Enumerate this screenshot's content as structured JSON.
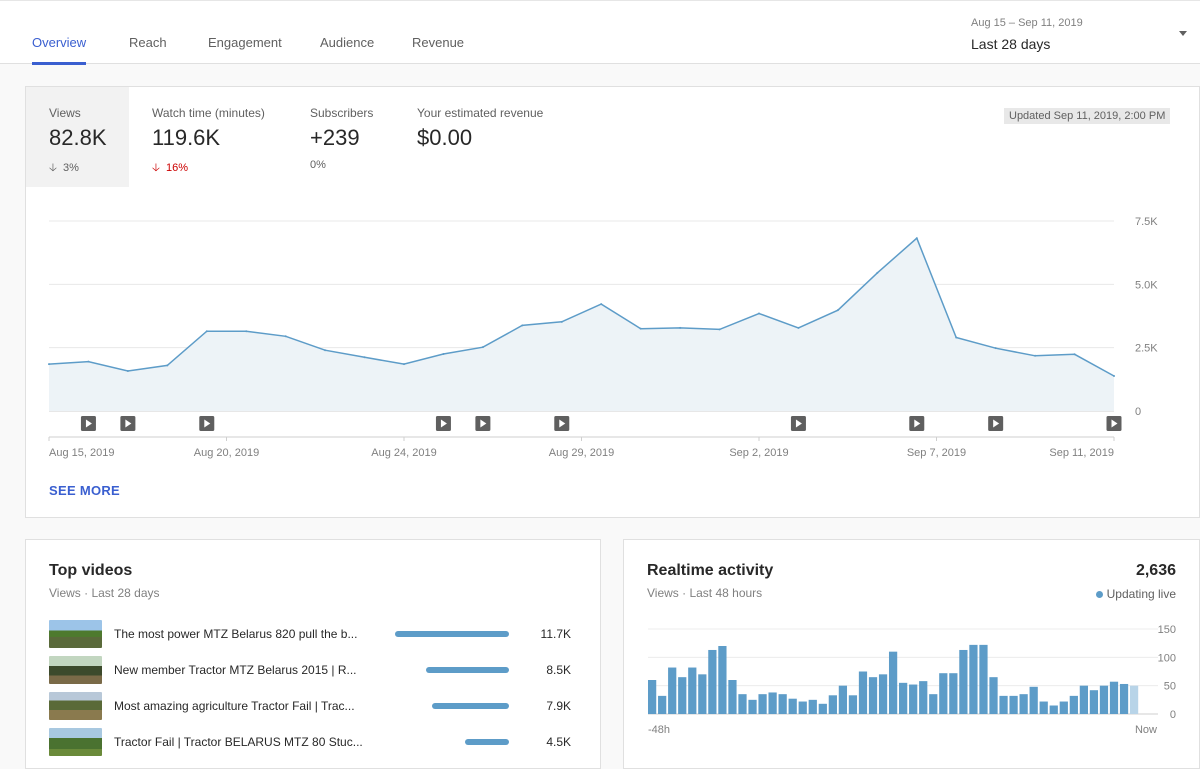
{
  "tabs": [
    {
      "label": "Overview",
      "active": true
    },
    {
      "label": "Reach"
    },
    {
      "label": "Engagement"
    },
    {
      "label": "Audience"
    },
    {
      "label": "Revenue"
    }
  ],
  "date_range": {
    "range": "Aug 15 – Sep 11, 2019",
    "label": "Last 28 days"
  },
  "metrics": [
    {
      "label": "Views",
      "value": "82.8K",
      "delta": "3%",
      "direction": "down"
    },
    {
      "label": "Watch time (minutes)",
      "value": "119.6K",
      "delta": "16%",
      "direction": "down"
    },
    {
      "label": "Subscribers",
      "value": "+239",
      "delta": "0%"
    },
    {
      "label": "Your estimated revenue",
      "value": "$0.00",
      "delta": ""
    }
  ],
  "updated": "Updated Sep 11, 2019, 2:00 PM",
  "see_more": "SEE MORE",
  "colors": {
    "accent": "#3a5fd0",
    "chart_line": "#5d9cc8",
    "chart_fill": "#edf3f7",
    "down": "#cc0000"
  },
  "chart_data": [
    {
      "type": "area",
      "series": [
        {
          "values": [
            1850,
            1950,
            1580,
            1800,
            3150,
            3150,
            2950,
            2400,
            2120,
            1850,
            2250,
            2520,
            3380,
            3520,
            4220,
            3250,
            3280,
            3220,
            3850,
            3280,
            3980,
            5450,
            6820,
            2900,
            2480,
            2180,
            2240,
            1380
          ]
        }
      ],
      "x_tick_labels": [
        "Aug 15, 2019",
        "Aug 20, 2019",
        "Aug 24, 2019",
        "Aug 29, 2019",
        "Sep 2, 2019",
        "Sep 7, 2019",
        "Sep 11, 2019"
      ],
      "y_tick_labels": [
        "0",
        "2.5K",
        "5.0K",
        "7.5K"
      ],
      "ylim": [
        0,
        7500
      ],
      "grid": true,
      "video_markers": [
        "Aug 16",
        "Aug 17",
        "Aug 19",
        "Aug 25",
        "Aug 26",
        "Aug 28",
        "Sep 2",
        "Sep 5",
        "Sep 7",
        "Sep 10"
      ]
    },
    {
      "type": "bar",
      "values": [
        60,
        32,
        82,
        65,
        82,
        70,
        113,
        120,
        60,
        35,
        25,
        35,
        38,
        35,
        27,
        22,
        25,
        18,
        33,
        50,
        33,
        75,
        65,
        70,
        110,
        55,
        52,
        58,
        35,
        72,
        72,
        113,
        122,
        122,
        65,
        32,
        32,
        35,
        48,
        22,
        15,
        22,
        32,
        50,
        42,
        50,
        57,
        53,
        50
      ],
      "last_bar_partial": true,
      "x_tick_labels": [
        "-48h",
        "Now"
      ],
      "y_tick_labels": [
        "0",
        "50",
        "100",
        "150"
      ],
      "ylim": [
        0,
        150
      ]
    }
  ],
  "top_videos": {
    "title": "Top videos",
    "subtitle": "Views · Last 28 days",
    "items": [
      {
        "title": "The most power MTZ Belarus 820 pull the b...",
        "views": "11.7K",
        "value": 11700
      },
      {
        "title": "New member Tractor MTZ Belarus 2015 | R...",
        "views": "8.5K",
        "value": 8500
      },
      {
        "title": "Most amazing agriculture Tractor Fail | Trac...",
        "views": "7.9K",
        "value": 7900
      },
      {
        "title": "Tractor Fail | Tractor BELARUS MTZ 80 Stuc...",
        "views": "4.5K",
        "value": 4500
      }
    ]
  },
  "realtime": {
    "title": "Realtime activity",
    "subtitle": "Views · Last 48 hours",
    "total": "2,636",
    "live_label": "Updating live"
  }
}
